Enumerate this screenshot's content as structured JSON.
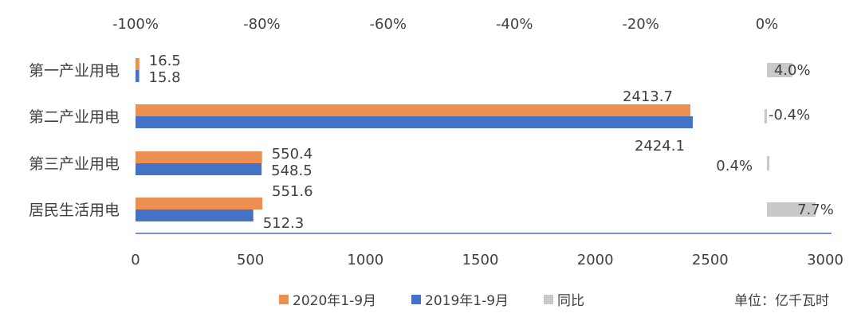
{
  "chart_data": {
    "type": "bar",
    "orientation": "horizontal",
    "categories": [
      "第一产业用电",
      "第二产业用电",
      "第三产业用电",
      "居民生活用电"
    ],
    "series": [
      {
        "name": "2020年1-9月",
        "values": [
          16.5,
          2413.7,
          550.4,
          551.6
        ],
        "color": "#ED8F50",
        "axis": "bottom"
      },
      {
        "name": "2019年1-9月",
        "values": [
          15.8,
          2424.1,
          548.5,
          512.3
        ],
        "color": "#4472C4",
        "axis": "bottom"
      },
      {
        "name": "同比",
        "values": [
          4.0,
          -0.4,
          0.4,
          7.7
        ],
        "value_labels": [
          "4.0%",
          "-0.4%",
          "0.4%",
          "7.7%"
        ],
        "color": "#C9C9C9",
        "axis": "top"
      }
    ],
    "x_axis_bottom": {
      "range": [
        0,
        3000
      ],
      "ticks": [
        0,
        500,
        1000,
        1500,
        2000,
        2500,
        3000
      ],
      "tick_labels": [
        "0",
        "500",
        "1000",
        "1500",
        "2000",
        "2500",
        "3000"
      ]
    },
    "x_axis_top": {
      "range": [
        -100,
        0
      ],
      "ticks": [
        -100,
        -80,
        -60,
        -40,
        -20,
        0
      ],
      "tick_labels": [
        "-100%",
        "-80%",
        "-60%",
        "-40%",
        "-20%",
        "0%"
      ]
    },
    "legend_position": "bottom",
    "grid": false,
    "unit_note": "单位：亿千瓦时"
  }
}
